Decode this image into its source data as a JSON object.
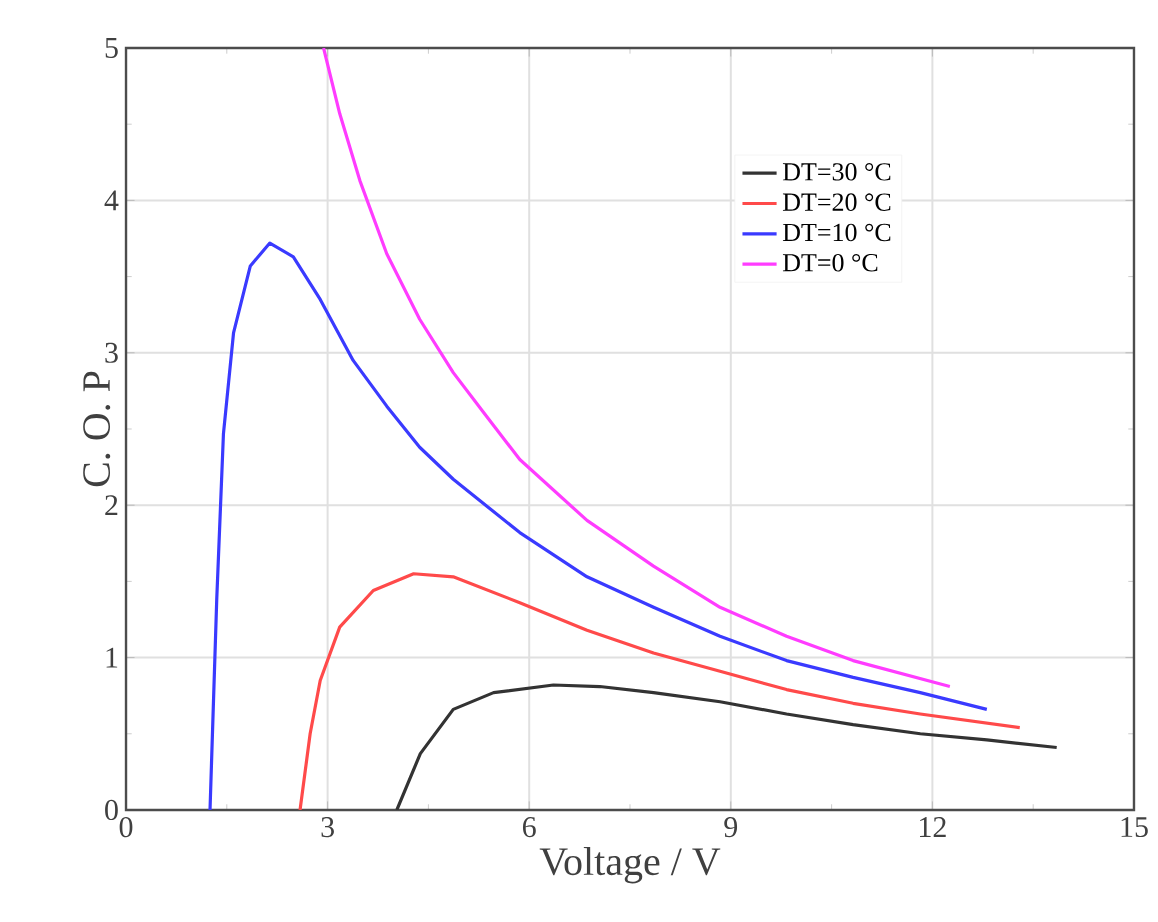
{
  "chart_data": {
    "type": "line",
    "xlabel": "Voltage / V",
    "ylabel": "C. O. P",
    "xlim": [
      0,
      15
    ],
    "ylim": [
      0,
      5
    ],
    "xticks": [
      0,
      3,
      6,
      9,
      12,
      15
    ],
    "yticks": [
      0,
      1,
      2,
      3,
      4,
      5
    ],
    "grid": true,
    "legend": "top right",
    "marker": "none",
    "line_style": "solid",
    "series": [
      {
        "name": "DT=30 °C",
        "color": "#333333",
        "x": [
          4.03,
          4.38,
          4.87,
          5.47,
          6.36,
          7.05,
          7.85,
          8.84,
          9.83,
          10.82,
          11.82,
          12.81,
          13.85
        ],
        "values": [
          0,
          0.37,
          0.66,
          0.77,
          0.82,
          0.81,
          0.77,
          0.71,
          0.63,
          0.56,
          0.5,
          0.46,
          0.41
        ]
      },
      {
        "name": "DT=20 °C",
        "color": "#ff4a4a",
        "x": [
          2.59,
          2.74,
          2.89,
          3.18,
          3.68,
          4.28,
          4.87,
          5.86,
          6.86,
          7.85,
          8.84,
          9.83,
          10.82,
          11.82,
          13.3
        ],
        "values": [
          0,
          0.5,
          0.85,
          1.2,
          1.44,
          1.55,
          1.53,
          1.36,
          1.18,
          1.03,
          0.91,
          0.79,
          0.7,
          0.63,
          0.54
        ]
      },
      {
        "name": "DT=10 °C",
        "color": "#3a3aff",
        "x": [
          1.25,
          1.35,
          1.45,
          1.6,
          1.85,
          2.14,
          2.49,
          2.89,
          3.38,
          3.88,
          4.37,
          4.87,
          5.86,
          6.86,
          7.85,
          8.84,
          9.83,
          10.82,
          11.82,
          12.81
        ],
        "values": [
          0,
          1.38,
          2.47,
          3.13,
          3.57,
          3.72,
          3.63,
          3.35,
          2.95,
          2.65,
          2.38,
          2.17,
          1.82,
          1.53,
          1.33,
          1.14,
          0.98,
          0.87,
          0.77,
          0.66
        ]
      },
      {
        "name": "DT=0 °C",
        "color": "#ff3cff",
        "x": [
          2.94,
          3.18,
          3.48,
          3.88,
          4.37,
          4.87,
          5.37,
          5.86,
          6.86,
          7.85,
          8.84,
          9.83,
          10.82,
          12.26
        ],
        "values": [
          5,
          4.57,
          4.13,
          3.65,
          3.22,
          2.87,
          2.58,
          2.3,
          1.9,
          1.6,
          1.33,
          1.14,
          0.98,
          0.81
        ]
      }
    ]
  }
}
